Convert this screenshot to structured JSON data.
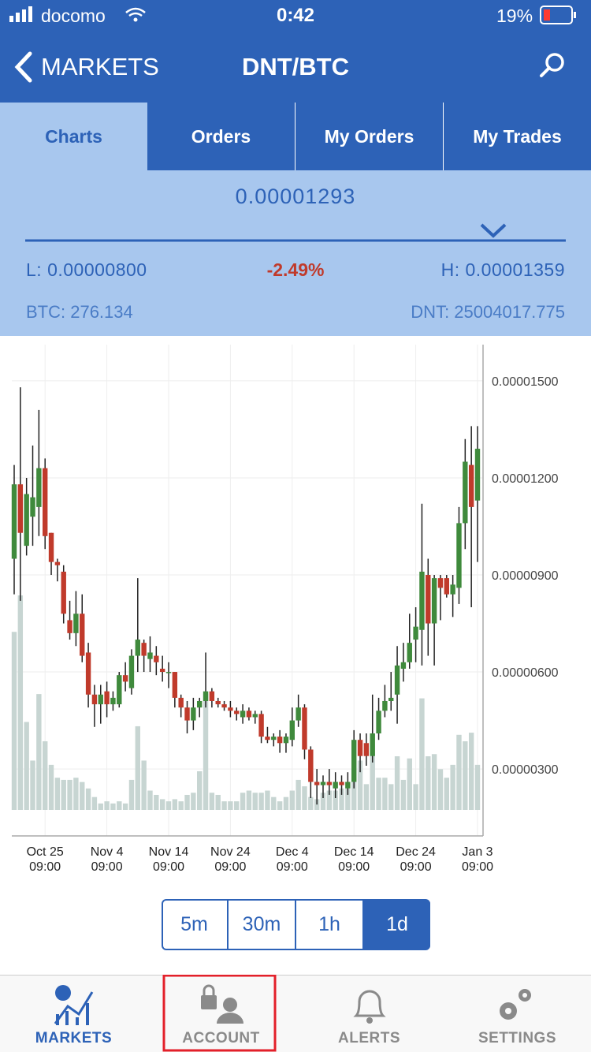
{
  "status_bar": {
    "carrier": "docomo",
    "time": "0:42",
    "battery": "19%"
  },
  "header": {
    "back": "MARKETS",
    "title": "DNT/BTC"
  },
  "tabs": [
    "Charts",
    "Orders",
    "My Orders",
    "My Trades"
  ],
  "ticker": {
    "price": "0.00001293",
    "low": "L: 0.00000800",
    "change": "-2.49%",
    "high": "H: 0.00001359",
    "btc": "BTC: 276.134",
    "dnt": "DNT: 25004017.775"
  },
  "intervals": [
    "5m",
    "30m",
    "1h",
    "1d"
  ],
  "tab_bar": [
    "MARKETS",
    "ACCOUNT",
    "ALERTS",
    "SETTINGS"
  ],
  "chart_data": {
    "type": "candlestick",
    "categories": [
      null,
      null,
      null,
      null,
      null,
      "Oct 25\n09:00",
      null,
      null,
      null,
      null,
      null,
      null,
      null,
      null,
      null,
      "Nov 4\n09:00",
      null,
      null,
      null,
      null,
      null,
      null,
      null,
      null,
      null,
      "Nov 14\n09:00",
      null,
      null,
      null,
      null,
      null,
      null,
      null,
      null,
      null,
      "Nov 24\n09:00",
      null,
      null,
      null,
      null,
      null,
      null,
      null,
      null,
      null,
      "Dec 4\n09:00",
      null,
      null,
      null,
      null,
      null,
      null,
      null,
      null,
      null,
      "Dec 14\n09:00",
      null,
      null,
      null,
      null,
      null,
      null,
      null,
      null,
      null,
      "Dec 24\n09:00",
      null,
      null,
      null,
      null,
      null,
      null,
      null,
      null,
      null,
      "Jan 3\n09:00"
    ],
    "open": [
      9.5e-06,
      1.18e-05,
      9.9e-06,
      1.08e-05,
      1.11e-05,
      1.23e-05,
      1.03e-05,
      9.4e-06,
      9.1e-06,
      7.6e-06,
      7.2e-06,
      7.8e-06,
      6.6e-06,
      5.3e-06,
      5e-06,
      5.4e-06,
      5e-06,
      5e-06,
      5.9e-06,
      5.5e-06,
      6.5e-06,
      6.9e-06,
      6.4e-06,
      6.5e-06,
      6.1e-06,
      6e-06,
      6e-06,
      5.2e-06,
      4.9e-06,
      4.5e-06,
      4.9e-06,
      5.1e-06,
      5.4e-06,
      5.1e-06,
      5e-06,
      4.9e-06,
      4.8e-06,
      4.6e-06,
      4.8e-06,
      4.6e-06,
      4.7e-06,
      4e-06,
      3.9e-06,
      4e-06,
      3.8e-06,
      3.9e-06,
      4.5e-06,
      4.9e-06,
      3.6e-06,
      2.6e-06,
      2.5e-06,
      2.6e-06,
      2.4e-06,
      2.6e-06,
      2.4e-06,
      2.6e-06,
      3.9e-06,
      3.8e-06,
      3.4e-06,
      4.1e-06,
      4.8e-06,
      5.1e-06,
      5.3e-06,
      6.1e-06,
      6.3e-06,
      7e-06,
      7.3e-06,
      9e-06,
      7.5e-06,
      8.9e-06,
      8.9e-06,
      8.4e-06,
      8.6e-06,
      1.06e-05,
      1.24e-05,
      1.13e-05
    ],
    "high": [
      1.24e-05,
      1.48e-05,
      1.2e-05,
      1.3e-05,
      1.41e-05,
      1.26e-05,
      1.03e-05,
      9.5e-06,
      9.3e-06,
      8.2e-06,
      8.5e-06,
      8.4e-06,
      6.9e-06,
      5.6e-06,
      5.6e-06,
      5.7e-06,
      5.4e-06,
      6e-06,
      6.3e-06,
      6.7e-06,
      8.9e-06,
      7e-06,
      7.1e-06,
      6.8e-06,
      6.5e-06,
      6.3e-06,
      6e-06,
      5.3e-06,
      5.1e-06,
      5.2e-06,
      5.2e-06,
      6.6e-06,
      5.5e-06,
      5.2e-06,
      5.1e-06,
      5.1e-06,
      4.9e-06,
      5e-06,
      4.9e-06,
      4.8e-06,
      4.8e-06,
      4.3e-06,
      4.1e-06,
      4.2e-06,
      4.1e-06,
      4.9e-06,
      5.3e-06,
      5e-06,
      3.7e-06,
      3e-06,
      2.8e-06,
      3e-06,
      2.9e-06,
      2.8e-06,
      2.9e-06,
      4.2e-06,
      4.1e-06,
      4.1e-06,
      5.3e-06,
      5.2e-06,
      5.6e-06,
      6e-06,
      6.8e-06,
      6.9e-06,
      7.8e-06,
      8e-06,
      1.12e-05,
      9.5e-06,
      9e-06,
      9e-06,
      9e-06,
      9e-06,
      1.11e-05,
      1.32e-05,
      1.36e-05,
      1.36e-05
    ],
    "low": [
      8.4e-06,
      8.2e-06,
      9.6e-06,
      9.9e-06,
      1.02e-05,
      9.8e-06,
      9e-06,
      8.8e-06,
      7.5e-06,
      7e-06,
      6.8e-06,
      6.3e-06,
      4.9e-06,
      4.3e-06,
      4.4e-06,
      4.6e-06,
      4.8e-06,
      4.9e-06,
      5.4e-06,
      5.3e-06,
      6e-06,
      6e-06,
      6e-06,
      5.9e-06,
      5.7e-06,
      5.5e-06,
      4.9e-06,
      4.6e-06,
      4.1e-06,
      4.2e-06,
      4.6e-06,
      4.9e-06,
      4.9e-06,
      4.9e-06,
      4.8e-06,
      4.6e-06,
      4.5e-06,
      4.4e-06,
      4.5e-06,
      4.4e-06,
      3.8e-06,
      3.8e-06,
      3.7e-06,
      3.5e-06,
      3.5e-06,
      3.7e-06,
      4.3e-06,
      3.3e-06,
      2.1e-06,
      1.9e-06,
      2.1e-06,
      2.2e-06,
      2.1e-06,
      2.2e-06,
      2.2e-06,
      2.4e-06,
      2.9e-06,
      3.1e-06,
      3.2e-06,
      3.9e-06,
      4.6e-06,
      4.8e-06,
      4.4e-06,
      5.7e-06,
      6.1e-06,
      6.3e-06,
      6.2e-06,
      6.5e-06,
      6.2e-06,
      7.6e-06,
      8.3e-06,
      7.7e-06,
      8.1e-06,
      9.8e-06,
      8e-06,
      9.4e-06
    ],
    "close": [
      1.18e-05,
      1.03e-05,
      1.15e-05,
      1.14e-05,
      1.23e-05,
      1.02e-05,
      9.4e-06,
      9.3e-06,
      7.8e-06,
      7.2e-06,
      7.8e-06,
      6.5e-06,
      5.3e-06,
      5e-06,
      5.3e-06,
      5e-06,
      5.2e-06,
      5.9e-06,
      5.7e-06,
      6.5e-06,
      7e-06,
      6.5e-06,
      6.6e-06,
      6.3e-06,
      6e-06,
      6e-06,
      5.2e-06,
      4.9e-06,
      4.5e-06,
      4.9e-06,
      5.1e-06,
      5.4e-06,
      5.1e-06,
      5e-06,
      4.9e-06,
      4.8e-06,
      4.7e-06,
      4.8e-06,
      4.6e-06,
      4.7e-06,
      4e-06,
      3.9e-06,
      4e-06,
      3.8e-06,
      4e-06,
      4.5e-06,
      4.9e-06,
      3.6e-06,
      2.6e-06,
      2.5e-06,
      2.6e-06,
      2.5e-06,
      2.6e-06,
      2.5e-06,
      2.6e-06,
      3.9e-06,
      3.4e-06,
      3.4e-06,
      4.1e-06,
      4.8e-06,
      5.1e-06,
      5.2e-06,
      6.2e-06,
      6.3e-06,
      6.9e-06,
      7.4e-06,
      9.1e-06,
      7.5e-06,
      8.9e-06,
      8.6e-06,
      8.4e-06,
      8.7e-06,
      1.06e-05,
      1.25e-05,
      1.11e-05,
      1.29e-05
    ],
    "volume": [
      83,
      100,
      41,
      23,
      54,
      32,
      21,
      15,
      14,
      14,
      15,
      13,
      10,
      6,
      3,
      4,
      3,
      4,
      3,
      14,
      39,
      23,
      9,
      7,
      5,
      4,
      5,
      4,
      7,
      8,
      18,
      54,
      8,
      7,
      4,
      4,
      4,
      8,
      9,
      8,
      8,
      9,
      6,
      4,
      6,
      9,
      14,
      11,
      6,
      5,
      8,
      9,
      9,
      10,
      10,
      24,
      23,
      12,
      26,
      15,
      15,
      12,
      25,
      14,
      24,
      12,
      52,
      25,
      26,
      19,
      15,
      21,
      35,
      32,
      36,
      21
    ],
    "up_color": "#3f8a3c",
    "down_color": "#c03a2b",
    "volume_color": "#c7d5d2",
    "ylim": [
      9.3e-07,
      1.612e-05
    ],
    "yticks": [
      {
        "value": 1.5e-05,
        "label": "0.00001500"
      },
      {
        "value": 1.2e-05,
        "label": "0.00001200"
      },
      {
        "value": 9e-06,
        "label": "0.00000900"
      },
      {
        "value": 6e-06,
        "label": "0.00000600"
      },
      {
        "value": 3e-06,
        "label": "0.00000300"
      }
    ],
    "grid": true
  }
}
